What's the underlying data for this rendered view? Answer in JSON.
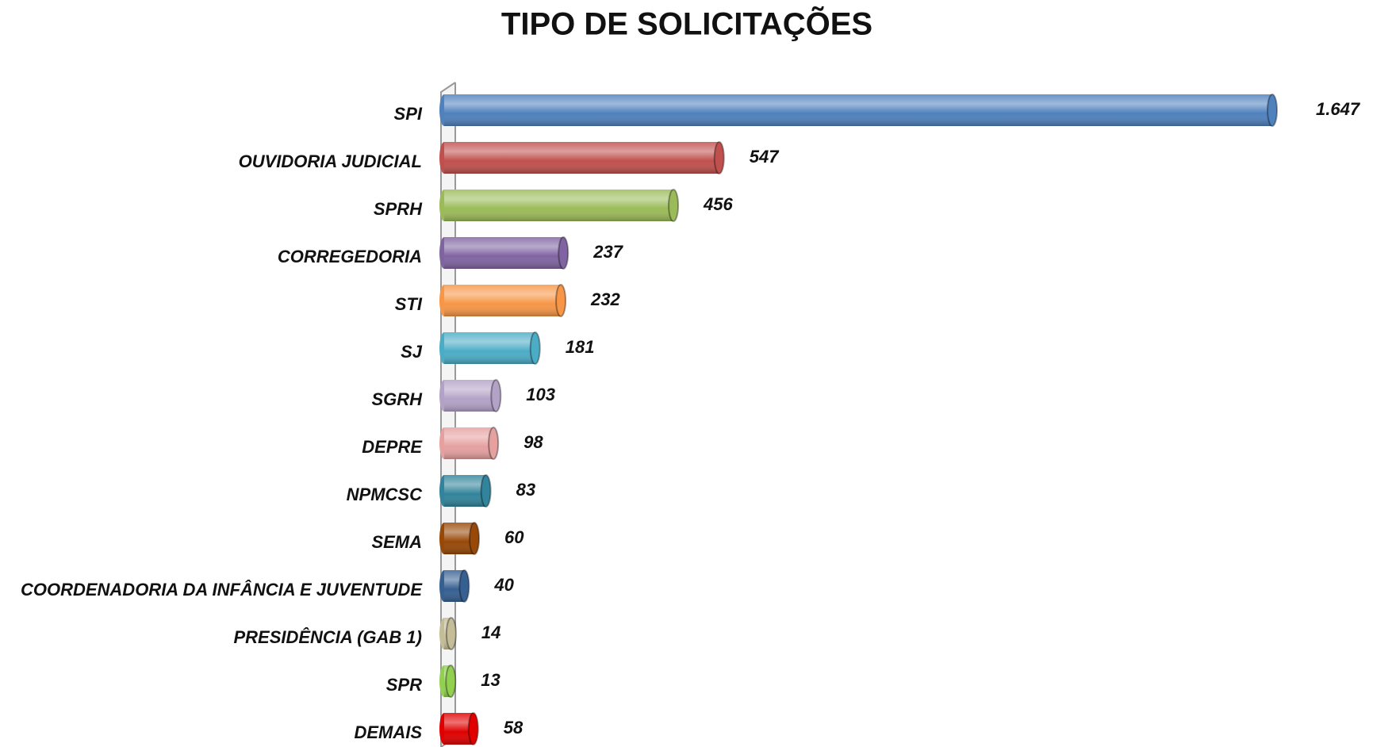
{
  "chart_data": {
    "type": "bar",
    "orientation": "horizontal",
    "title": "TIPO DE SOLICITAÇÕES",
    "categories": [
      "SPI",
      "OUVIDORIA JUDICIAL",
      "SPRH",
      "CORREGEDORIA",
      "STI",
      "SJ",
      "SGRH",
      "DEPRE",
      "NPMCSC",
      "SEMA",
      "COORDENADORIA DA INFÂNCIA E JUVENTUDE",
      "PRESIDÊNCIA (GAB 1)",
      "SPR",
      "DEMAIS"
    ],
    "values": [
      1647,
      547,
      456,
      237,
      232,
      181,
      103,
      98,
      83,
      60,
      40,
      14,
      13,
      58
    ],
    "value_labels": [
      "1.647",
      "547",
      "456",
      "237",
      "232",
      "181",
      "103",
      "98",
      "83",
      "60",
      "40",
      "14",
      "13",
      "58"
    ],
    "colors": [
      "#4f81bd",
      "#c0504d",
      "#9bbb59",
      "#8064a2",
      "#f79646",
      "#4bacc6",
      "#b3a2c7",
      "#e6a0a0",
      "#31849b",
      "#984807",
      "#366092",
      "#c4bd97",
      "#92d050",
      "#e00000"
    ]
  }
}
